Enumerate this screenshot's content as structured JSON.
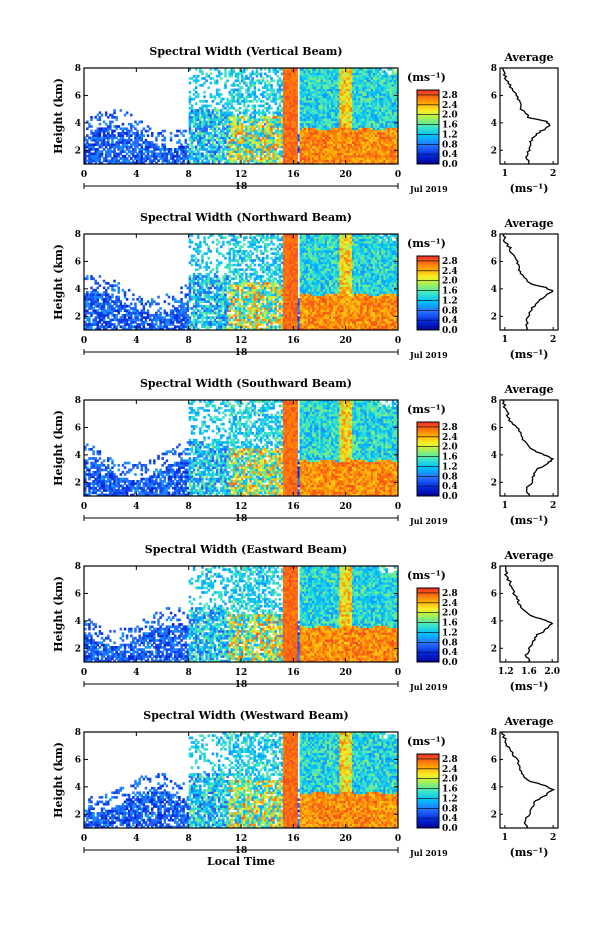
{
  "chart_data": [
    {
      "type": "heatmap",
      "title": "Spectral Width (Vertical Beam)",
      "ylabel": "Height (km)",
      "x_ticks": [
        "0",
        "4",
        "8",
        "12",
        "16",
        "20",
        "0"
      ],
      "xlim": [
        0,
        24
      ],
      "ylim": [
        1,
        8
      ],
      "y_ticks": [
        "2",
        "4",
        "6",
        "8"
      ],
      "date_marker": "18",
      "date_label": "Jul 2019",
      "colorbar": {
        "unit": "(ms⁻¹)",
        "ticks": [
          "0.0",
          "0.4",
          "0.8",
          "1.2",
          "1.6",
          "2.0",
          "2.4",
          "2.8"
        ],
        "range": [
          0,
          3
        ]
      },
      "average": {
        "title": "Average",
        "xlabel": "(ms⁻¹)",
        "x_ticks": [
          "1",
          "2"
        ],
        "xlim": [
          0.9,
          2.1
        ],
        "y_ticks": [
          "2",
          "4",
          "6",
          "8"
        ],
        "profile": [
          [
            1.5,
            1.0
          ],
          [
            1.45,
            1.5
          ],
          [
            1.5,
            2.0
          ],
          [
            1.52,
            2.5
          ],
          [
            1.6,
            3.0
          ],
          [
            1.75,
            3.4
          ],
          [
            1.95,
            3.8
          ],
          [
            1.85,
            4.1
          ],
          [
            1.5,
            4.4
          ],
          [
            1.35,
            5.0
          ],
          [
            1.3,
            5.5
          ],
          [
            1.25,
            6.0
          ],
          [
            1.15,
            6.5
          ],
          [
            1.05,
            7.0
          ],
          [
            1.0,
            7.5
          ],
          [
            0.95,
            8.0
          ]
        ]
      }
    },
    {
      "type": "heatmap",
      "title": "Spectral Width (Northward Beam)",
      "ylabel": "Height (km)",
      "x_ticks": [
        "0",
        "4",
        "8",
        "12",
        "16",
        "20",
        "0"
      ],
      "xlim": [
        0,
        24
      ],
      "ylim": [
        1,
        8
      ],
      "y_ticks": [
        "2",
        "4",
        "6",
        "8"
      ],
      "date_marker": "18",
      "date_label": "Jul 2019",
      "colorbar": {
        "unit": "(ms⁻¹)",
        "ticks": [
          "0.0",
          "0.4",
          "0.8",
          "1.2",
          "1.6",
          "2.0",
          "2.4",
          "2.8"
        ],
        "range": [
          0,
          3
        ]
      },
      "average": {
        "title": "Average",
        "xlabel": "(ms⁻¹)",
        "x_ticks": [
          "1",
          "2"
        ],
        "xlim": [
          0.9,
          2.1
        ],
        "y_ticks": [
          "2",
          "4",
          "6",
          "8"
        ],
        "profile": [
          [
            1.45,
            1.0
          ],
          [
            1.45,
            1.5
          ],
          [
            1.5,
            2.0
          ],
          [
            1.55,
            2.5
          ],
          [
            1.65,
            3.0
          ],
          [
            1.8,
            3.4
          ],
          [
            2.0,
            3.8
          ],
          [
            1.85,
            4.1
          ],
          [
            1.5,
            4.4
          ],
          [
            1.35,
            5.0
          ],
          [
            1.3,
            5.5
          ],
          [
            1.25,
            6.0
          ],
          [
            1.15,
            6.5
          ],
          [
            1.1,
            7.0
          ],
          [
            1.0,
            7.5
          ],
          [
            0.98,
            8.0
          ]
        ]
      }
    },
    {
      "type": "heatmap",
      "title": "Spectral Width (Southward Beam)",
      "ylabel": "Height (km)",
      "x_ticks": [
        "0",
        "4",
        "8",
        "12",
        "16",
        "20",
        "0"
      ],
      "xlim": [
        0,
        24
      ],
      "ylim": [
        1,
        8
      ],
      "y_ticks": [
        "2",
        "4",
        "6",
        "8"
      ],
      "date_marker": "18",
      "date_label": "Jul 2019",
      "colorbar": {
        "unit": "(ms⁻¹)",
        "ticks": [
          "0.0",
          "0.4",
          "0.8",
          "1.2",
          "1.6",
          "2.0",
          "2.4",
          "2.8"
        ],
        "range": [
          0,
          3
        ]
      },
      "average": {
        "title": "Average",
        "xlabel": "(ms⁻¹)",
        "x_ticks": [
          "1",
          "2"
        ],
        "xlim": [
          0.9,
          2.1
        ],
        "y_ticks": [
          "2",
          "4",
          "6",
          "8"
        ],
        "profile": [
          [
            1.5,
            1.0
          ],
          [
            1.45,
            1.5
          ],
          [
            1.55,
            2.0
          ],
          [
            1.6,
            2.5
          ],
          [
            1.7,
            3.0
          ],
          [
            1.9,
            3.4
          ],
          [
            2.0,
            3.7
          ],
          [
            1.8,
            4.0
          ],
          [
            1.6,
            4.3
          ],
          [
            1.4,
            5.0
          ],
          [
            1.35,
            5.5
          ],
          [
            1.25,
            6.0
          ],
          [
            1.1,
            6.5
          ],
          [
            1.05,
            7.0
          ],
          [
            1.0,
            7.5
          ],
          [
            0.95,
            8.0
          ]
        ]
      }
    },
    {
      "type": "heatmap",
      "title": "Spectral Width (Eastward Beam)",
      "ylabel": "Height (km)",
      "x_ticks": [
        "0",
        "4",
        "8",
        "12",
        "16",
        "20",
        "0"
      ],
      "xlim": [
        0,
        24
      ],
      "ylim": [
        1,
        8
      ],
      "y_ticks": [
        "2",
        "4",
        "6",
        "8"
      ],
      "date_marker": "18",
      "date_label": "Jul 2019",
      "colorbar": {
        "unit": "(ms⁻¹)",
        "ticks": [
          "0.0",
          "0.4",
          "0.8",
          "1.2",
          "1.6",
          "2.0",
          "2.4",
          "2.8"
        ],
        "range": [
          0,
          3
        ]
      },
      "average": {
        "title": "Average",
        "xlabel": "(ms⁻¹)",
        "x_ticks": [
          "1.2",
          "1.6",
          "2.0"
        ],
        "xlim": [
          1.1,
          2.1
        ],
        "y_ticks": [
          "2",
          "4",
          "6",
          "8"
        ],
        "profile": [
          [
            1.6,
            1.0
          ],
          [
            1.55,
            1.5
          ],
          [
            1.6,
            2.0
          ],
          [
            1.65,
            2.5
          ],
          [
            1.75,
            3.0
          ],
          [
            1.9,
            3.4
          ],
          [
            2.0,
            3.8
          ],
          [
            1.85,
            4.1
          ],
          [
            1.6,
            4.4
          ],
          [
            1.45,
            5.0
          ],
          [
            1.4,
            5.5
          ],
          [
            1.35,
            6.0
          ],
          [
            1.3,
            6.5
          ],
          [
            1.25,
            7.0
          ],
          [
            1.2,
            7.5
          ],
          [
            1.2,
            8.0
          ]
        ]
      }
    },
    {
      "type": "heatmap",
      "title": "Spectral Width (Westward Beam)",
      "ylabel": "Height (km)",
      "xlabel": "Local Time",
      "x_ticks": [
        "0",
        "4",
        "8",
        "12",
        "16",
        "20",
        "0"
      ],
      "xlim": [
        0,
        24
      ],
      "ylim": [
        1,
        8
      ],
      "y_ticks": [
        "2",
        "4",
        "6",
        "8"
      ],
      "date_marker": "18",
      "date_label": "Jul 2019",
      "colorbar": {
        "unit": "(ms⁻¹)",
        "ticks": [
          "0.0",
          "0.4",
          "0.8",
          "1.2",
          "1.6",
          "2.0",
          "2.4",
          "2.8"
        ],
        "range": [
          0,
          3
        ]
      },
      "average": {
        "title": "Average",
        "xlabel": "(ms⁻¹)",
        "x_ticks": [
          "1",
          "2"
        ],
        "xlim": [
          0.9,
          2.1
        ],
        "y_ticks": [
          "2",
          "4",
          "6",
          "8"
        ],
        "profile": [
          [
            1.45,
            1.0
          ],
          [
            1.4,
            1.5
          ],
          [
            1.5,
            2.0
          ],
          [
            1.55,
            2.5
          ],
          [
            1.65,
            3.0
          ],
          [
            1.85,
            3.4
          ],
          [
            2.0,
            3.8
          ],
          [
            1.85,
            4.1
          ],
          [
            1.5,
            4.4
          ],
          [
            1.35,
            5.0
          ],
          [
            1.3,
            5.5
          ],
          [
            1.25,
            6.0
          ],
          [
            1.15,
            6.5
          ],
          [
            1.05,
            7.0
          ],
          [
            1.0,
            7.5
          ],
          [
            0.95,
            8.0
          ]
        ]
      }
    }
  ]
}
